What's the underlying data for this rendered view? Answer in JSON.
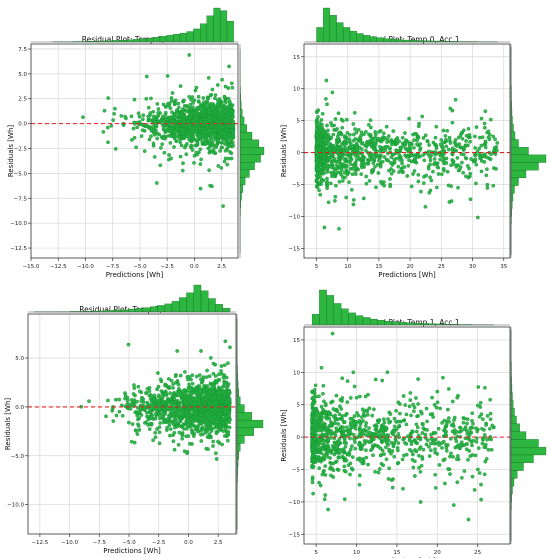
{
  "chart_data": [
    {
      "type": "scatter",
      "title": "Residual Plot: Temp 0, Acc 0",
      "xlabel": "Predictions [Wh]",
      "ylabel": "Residuals [Wh]",
      "xlim": [
        -15,
        4
      ],
      "ylim": [
        -13.5,
        8
      ],
      "xticks": [
        -15.0,
        -12.5,
        -10.0,
        -7.5,
        -5.0,
        -2.5,
        0.0,
        2.5
      ],
      "yticks": [
        -12.5,
        -10.0,
        -7.5,
        -5.0,
        -2.5,
        0.0,
        2.5,
        5.0,
        7.5
      ],
      "tick_decimals": 1,
      "grid": true,
      "zero_line": {
        "y": 0,
        "color": "#e02020",
        "style": "dashed"
      },
      "point_color": "#21b040",
      "hist_color": "#2db640",
      "distribution": {
        "x_range": [
          -13,
          3.6
        ],
        "x_peak": 1.2,
        "y_spread": 1.1,
        "n": 1500
      },
      "x_hist_counts": [
        1,
        1,
        1,
        2,
        2,
        3,
        3,
        4,
        5,
        6,
        7,
        9,
        10,
        12,
        14,
        18,
        22,
        26,
        30,
        34,
        40,
        50,
        70,
        100,
        130,
        120,
        80
      ],
      "y_hist_counts": [
        1,
        1,
        1,
        2,
        2,
        3,
        5,
        8,
        14,
        24,
        40,
        70,
        110,
        140,
        120,
        85,
        55,
        30,
        16,
        9,
        5,
        3,
        2,
        1,
        1,
        1,
        1
      ]
    },
    {
      "type": "scatter",
      "title": "Residual Plot: Temp 0, Acc 1",
      "xlabel": "Predictions [Wh]",
      "ylabel": "Residuals [Wh]",
      "xlim": [
        3,
        36
      ],
      "ylim": [
        -16.5,
        17
      ],
      "xticks": [
        5,
        10,
        15,
        20,
        25,
        30,
        35
      ],
      "yticks": [
        -15,
        -10,
        -5,
        0,
        5,
        10,
        15
      ],
      "tick_decimals": 0,
      "grid": true,
      "zero_line": {
        "y": 0,
        "color": "#e02020",
        "style": "dashed"
      },
      "point_color": "#21b040",
      "hist_color": "#2db640",
      "distribution": {
        "x_range": [
          5,
          34
        ],
        "x_peak": 6.5,
        "y_spread": 2.2,
        "n": 1100
      },
      "x_hist_counts": [
        60,
        140,
        110,
        80,
        60,
        45,
        35,
        28,
        22,
        18,
        14,
        12,
        10,
        8,
        7,
        6,
        5,
        4,
        4,
        3,
        3,
        2,
        2,
        2,
        1,
        1,
        1
      ],
      "y_hist_counts": [
        1,
        1,
        1,
        1,
        1,
        2,
        2,
        3,
        4,
        6,
        10,
        16,
        30,
        70,
        140,
        110,
        60,
        30,
        14,
        8,
        5,
        3,
        2,
        1,
        1,
        1,
        1
      ]
    },
    {
      "type": "scatter",
      "title": "Residual Plot: Temp 1, Acc 0",
      "xlabel": "Predictions [Wh]",
      "ylabel": "Residuals [Wh]",
      "xlim": [
        -13.5,
        4
      ],
      "ylim": [
        -13,
        9.5
      ],
      "xticks": [
        -12.5,
        -10.0,
        -7.5,
        -5.0,
        -2.5,
        0.0,
        2.5
      ],
      "yticks": [
        -10,
        -5,
        0,
        5
      ],
      "tick_decimals": 1,
      "grid": true,
      "zero_line": {
        "y": 0,
        "color": "#e02020",
        "style": "dashed"
      },
      "point_color": "#21b040",
      "hist_color": "#2db640",
      "distribution": {
        "x_range": [
          -13,
          3.5
        ],
        "x_peak": 1.0,
        "y_spread": 1.2,
        "n": 1500
      },
      "x_hist_counts": [
        1,
        1,
        1,
        2,
        2,
        3,
        3,
        4,
        5,
        6,
        8,
        10,
        12,
        15,
        18,
        22,
        28,
        34,
        42,
        55,
        75,
        100,
        140,
        110,
        70,
        40,
        20
      ],
      "y_hist_counts": [
        1,
        1,
        1,
        1,
        2,
        2,
        3,
        4,
        6,
        10,
        18,
        40,
        80,
        140,
        90,
        40,
        18,
        10,
        6,
        4,
        3,
        2,
        1,
        1,
        1,
        1,
        1
      ]
    },
    {
      "type": "scatter",
      "title": "Residual Plot: Temp 1, Acc 1",
      "xlabel": "Predictions [Wh]",
      "ylabel": "Residuals [Wh]",
      "xlim": [
        3.5,
        29
      ],
      "ylim": [
        -16.5,
        17
      ],
      "xticks": [
        5,
        10,
        15,
        20,
        25
      ],
      "yticks": [
        -15,
        -10,
        -5,
        0,
        5,
        10,
        15
      ],
      "tick_decimals": 0,
      "grid": true,
      "zero_line": {
        "y": 0,
        "color": "#e02020",
        "style": "dashed"
      },
      "point_color": "#21b040",
      "hist_color": "#2db640",
      "distribution": {
        "x_range": [
          4.5,
          27
        ],
        "x_peak": 6.0,
        "y_spread": 2.8,
        "n": 1000
      },
      "x_hist_counts": [
        40,
        130,
        110,
        80,
        60,
        45,
        35,
        28,
        22,
        18,
        14,
        12,
        10,
        8,
        7,
        6,
        5,
        4,
        3,
        3,
        2,
        2,
        1,
        1,
        1
      ],
      "y_hist_counts": [
        1,
        1,
        1,
        1,
        2,
        2,
        3,
        4,
        6,
        9,
        14,
        22,
        35,
        60,
        110,
        140,
        90,
        50,
        25,
        12,
        6,
        3,
        2,
        1,
        1,
        1,
        1
      ]
    }
  ]
}
